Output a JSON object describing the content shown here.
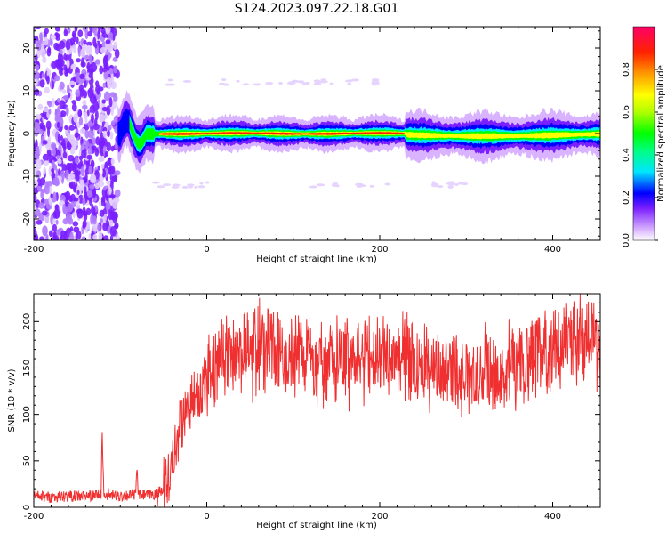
{
  "figure_title": "S124.2023.097.22.18.G01",
  "chart_data": [
    {
      "type": "heatmap",
      "title": "",
      "xlabel": "Height of straight line (km)",
      "ylabel": "Frequency (Hz)",
      "xlim": [
        -200,
        455
      ],
      "ylim": [
        -25,
        25
      ],
      "x_ticks": [
        -200,
        0,
        200,
        400
      ],
      "y_ticks": [
        -20,
        -10,
        0,
        10,
        20
      ],
      "colorbar": {
        "label": "Normalized spectral amplitude",
        "range": [
          0,
          1
        ],
        "ticks": [
          0.0,
          0.2,
          0.4,
          0.6,
          0.8
        ],
        "tick_labels": [
          "0.0",
          "0.2",
          "0.4",
          "0.6",
          "0.8"
        ],
        "colormap": [
          "#ffffff",
          "#c080ff",
          "#7a1fff",
          "#0000ff",
          "#00e5ff",
          "#00ff00",
          "#ffff00",
          "#ff8000",
          "#ff0000",
          "#ff0080"
        ]
      },
      "regions": [
        {
          "x_range": [
            -200,
            -103
          ],
          "y_range": [
            -25,
            25
          ],
          "amplitude": 0.2,
          "pattern": "broadband noise"
        },
        {
          "x_range": [
            -103,
            -55
          ],
          "freq_hz": 0,
          "amplitude": 0.4,
          "pattern": "wavy onset"
        },
        {
          "x_range": [
            -55,
            230
          ],
          "freq_hz": 0,
          "amplitude": 0.95,
          "pattern": "strong narrow tone"
        },
        {
          "x_range": [
            230,
            455
          ],
          "freq_hz": 0,
          "amplitude": 0.6,
          "pattern": "broadened tone"
        }
      ],
      "grid": false
    },
    {
      "type": "line",
      "title": "",
      "xlabel": "Height of straight line (km)",
      "ylabel": "SNR (10 * v/v)",
      "xlim": [
        -200,
        455
      ],
      "ylim": [
        0,
        230
      ],
      "x_ticks": [
        -200,
        0,
        200,
        400
      ],
      "y_ticks": [
        0,
        50,
        100,
        150,
        200
      ],
      "color": "#f03030",
      "series": [
        {
          "x": [
            -200,
            -180,
            -160,
            -140,
            -122,
            -121,
            -119,
            -100,
            -82,
            -81,
            -79,
            -60,
            -50,
            -40,
            -30,
            -20,
            -10,
            0,
            10,
            20,
            40,
            60,
            80,
            100,
            120,
            130,
            140,
            160,
            180,
            200,
            220,
            240,
            260,
            280,
            300,
            320,
            340,
            360,
            380,
            400,
            420,
            440,
            455
          ],
          "values": [
            12,
            11,
            12,
            12,
            14,
            85,
            14,
            12,
            14,
            44,
            13,
            14,
            20,
            50,
            95,
            110,
            120,
            135,
            160,
            170,
            172,
            175,
            170,
            168,
            165,
            150,
            160,
            162,
            165,
            162,
            160,
            158,
            150,
            145,
            150,
            148,
            150,
            155,
            165,
            170,
            175,
            180,
            172
          ]
        }
      ],
      "grid": false
    }
  ]
}
